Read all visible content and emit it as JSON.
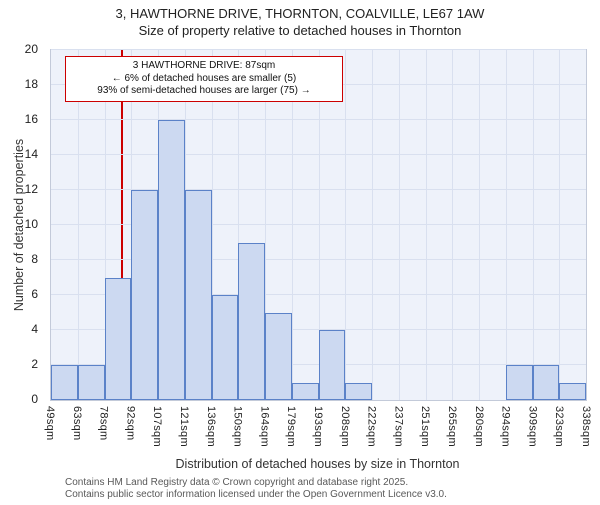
{
  "title": {
    "line1": "3, HAWTHORNE DRIVE, THORNTON, COALVILLE, LE67 1AW",
    "line2": "Size of property relative to detached houses in Thornton"
  },
  "annotation": {
    "line1": "3 HAWTHORNE DRIVE: 87sqm",
    "line2": "← 6% of detached houses are smaller (5)",
    "line3": "93% of semi-detached houses are larger (75) →"
  },
  "footer": {
    "line1": "Contains HM Land Registry data © Crown copyright and database right 2025.",
    "line2": "Contains public sector information licensed under the Open Government Licence v3.0."
  },
  "chart_data": {
    "type": "bar",
    "title": "3, HAWTHORNE DRIVE, THORNTON, COALVILLE, LE67 1AW — Size of property relative to detached houses in Thornton",
    "xlabel": "Distribution of detached houses by size in Thornton",
    "ylabel": "Number of detached properties",
    "bin_edges_sqm": [
      49,
      63,
      78,
      92,
      107,
      121,
      136,
      150,
      164,
      179,
      193,
      208,
      222,
      237,
      251,
      265,
      280,
      294,
      309,
      323,
      338
    ],
    "tick_labels": [
      "49sqm",
      "63sqm",
      "78sqm",
      "92sqm",
      "107sqm",
      "121sqm",
      "136sqm",
      "150sqm",
      "164sqm",
      "179sqm",
      "193sqm",
      "208sqm",
      "222sqm",
      "237sqm",
      "251sqm",
      "265sqm",
      "280sqm",
      "294sqm",
      "309sqm",
      "323sqm",
      "338sqm"
    ],
    "values": [
      2,
      2,
      7,
      12,
      16,
      12,
      6,
      9,
      5,
      1,
      4,
      1,
      0,
      0,
      0,
      0,
      0,
      2,
      2,
      1
    ],
    "ylim": [
      0,
      20
    ],
    "ytick_step": 2,
    "marker_value_sqm": 87,
    "grid": true,
    "legend": "none",
    "colors": {
      "bar_fill": "#ccd9f1",
      "bar_border": "#5b82c8",
      "marker_line": "#cc0000",
      "grid_line": "#d9e0ef",
      "plot_bg": "#eef2fa"
    }
  }
}
